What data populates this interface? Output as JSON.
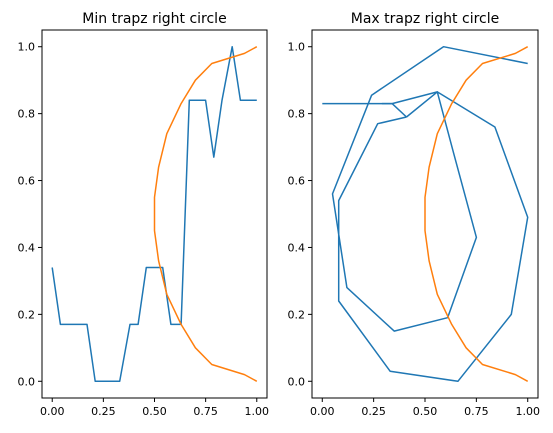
{
  "chart_data": [
    {
      "type": "line",
      "title": "Min trapz right circle",
      "xlim": [
        -0.05,
        1.05
      ],
      "ylim": [
        -0.05,
        1.05
      ],
      "xticks": [
        "0.00",
        "0.25",
        "0.50",
        "0.75",
        "1.00"
      ],
      "yticks": [
        "0.0",
        "0.2",
        "0.4",
        "0.6",
        "0.8",
        "1.0"
      ],
      "grid": false,
      "series": [
        {
          "color": "#1f77b4",
          "x": [
            0.0,
            0.04,
            0.08,
            0.13,
            0.17,
            0.21,
            0.25,
            0.29,
            0.33,
            0.38,
            0.42,
            0.46,
            0.5,
            0.54,
            0.58,
            0.63,
            0.67,
            0.71,
            0.75,
            0.79,
            0.83,
            0.88,
            0.92,
            0.96,
            1.0
          ],
          "y": [
            0.34,
            0.17,
            0.17,
            0.17,
            0.17,
            0.0,
            0.0,
            0.0,
            0.0,
            0.17,
            0.17,
            0.34,
            0.34,
            0.34,
            0.17,
            0.17,
            0.84,
            0.84,
            0.84,
            0.67,
            0.84,
            1.0,
            0.84,
            0.84,
            0.84
          ]
        },
        {
          "color": "#ff7f0e",
          "x": [
            1.0,
            0.94,
            0.78,
            0.7,
            0.63,
            0.56,
            0.52,
            0.5,
            0.5,
            0.52,
            0.56,
            0.63,
            0.7,
            0.78,
            0.94,
            1.0
          ],
          "y": [
            0.0,
            0.02,
            0.05,
            0.1,
            0.17,
            0.26,
            0.36,
            0.45,
            0.55,
            0.64,
            0.74,
            0.83,
            0.9,
            0.95,
            0.98,
            1.0
          ]
        }
      ]
    },
    {
      "type": "line",
      "title": "Max trapz right circle",
      "xlim": [
        -0.05,
        1.05
      ],
      "ylim": [
        -0.05,
        1.05
      ],
      "xticks": [
        "0.00",
        "0.25",
        "0.50",
        "0.75",
        "1.00"
      ],
      "yticks": [
        "0.0",
        "0.2",
        "0.4",
        "0.6",
        "0.8",
        "1.0"
      ],
      "grid": false,
      "series": [
        {
          "color": "#1f77b4",
          "x": [
            0.0,
            0.34,
            0.56,
            0.64,
            0.75,
            0.61,
            0.35,
            0.12,
            0.05,
            0.24,
            0.59,
            1.0
          ],
          "y": [
            0.83,
            0.83,
            0.865,
            0.68,
            0.43,
            0.19,
            0.15,
            0.28,
            0.56,
            0.855,
            1.0,
            0.95
          ]
        },
        {
          "color": "#1f77b4",
          "x": [
            0.29,
            0.34,
            0.41
          ],
          "y": [
            0.83,
            0.83,
            0.79
          ]
        },
        {
          "color": "#1f77b4",
          "x": [
            0.41,
            0.27,
            0.08,
            0.08,
            0.33,
            0.66,
            0.92,
            1.0,
            0.84,
            0.56,
            0.41
          ],
          "y": [
            0.79,
            0.77,
            0.54,
            0.24,
            0.03,
            0.0,
            0.2,
            0.49,
            0.76,
            0.865,
            0.79
          ]
        },
        {
          "color": "#ff7f0e",
          "x": [
            1.0,
            0.94,
            0.78,
            0.7,
            0.63,
            0.56,
            0.52,
            0.5,
            0.5,
            0.52,
            0.56,
            0.63,
            0.7,
            0.78,
            0.94,
            1.0
          ],
          "y": [
            0.0,
            0.02,
            0.05,
            0.1,
            0.17,
            0.26,
            0.36,
            0.45,
            0.55,
            0.64,
            0.74,
            0.83,
            0.9,
            0.95,
            0.98,
            1.0
          ]
        }
      ]
    }
  ]
}
